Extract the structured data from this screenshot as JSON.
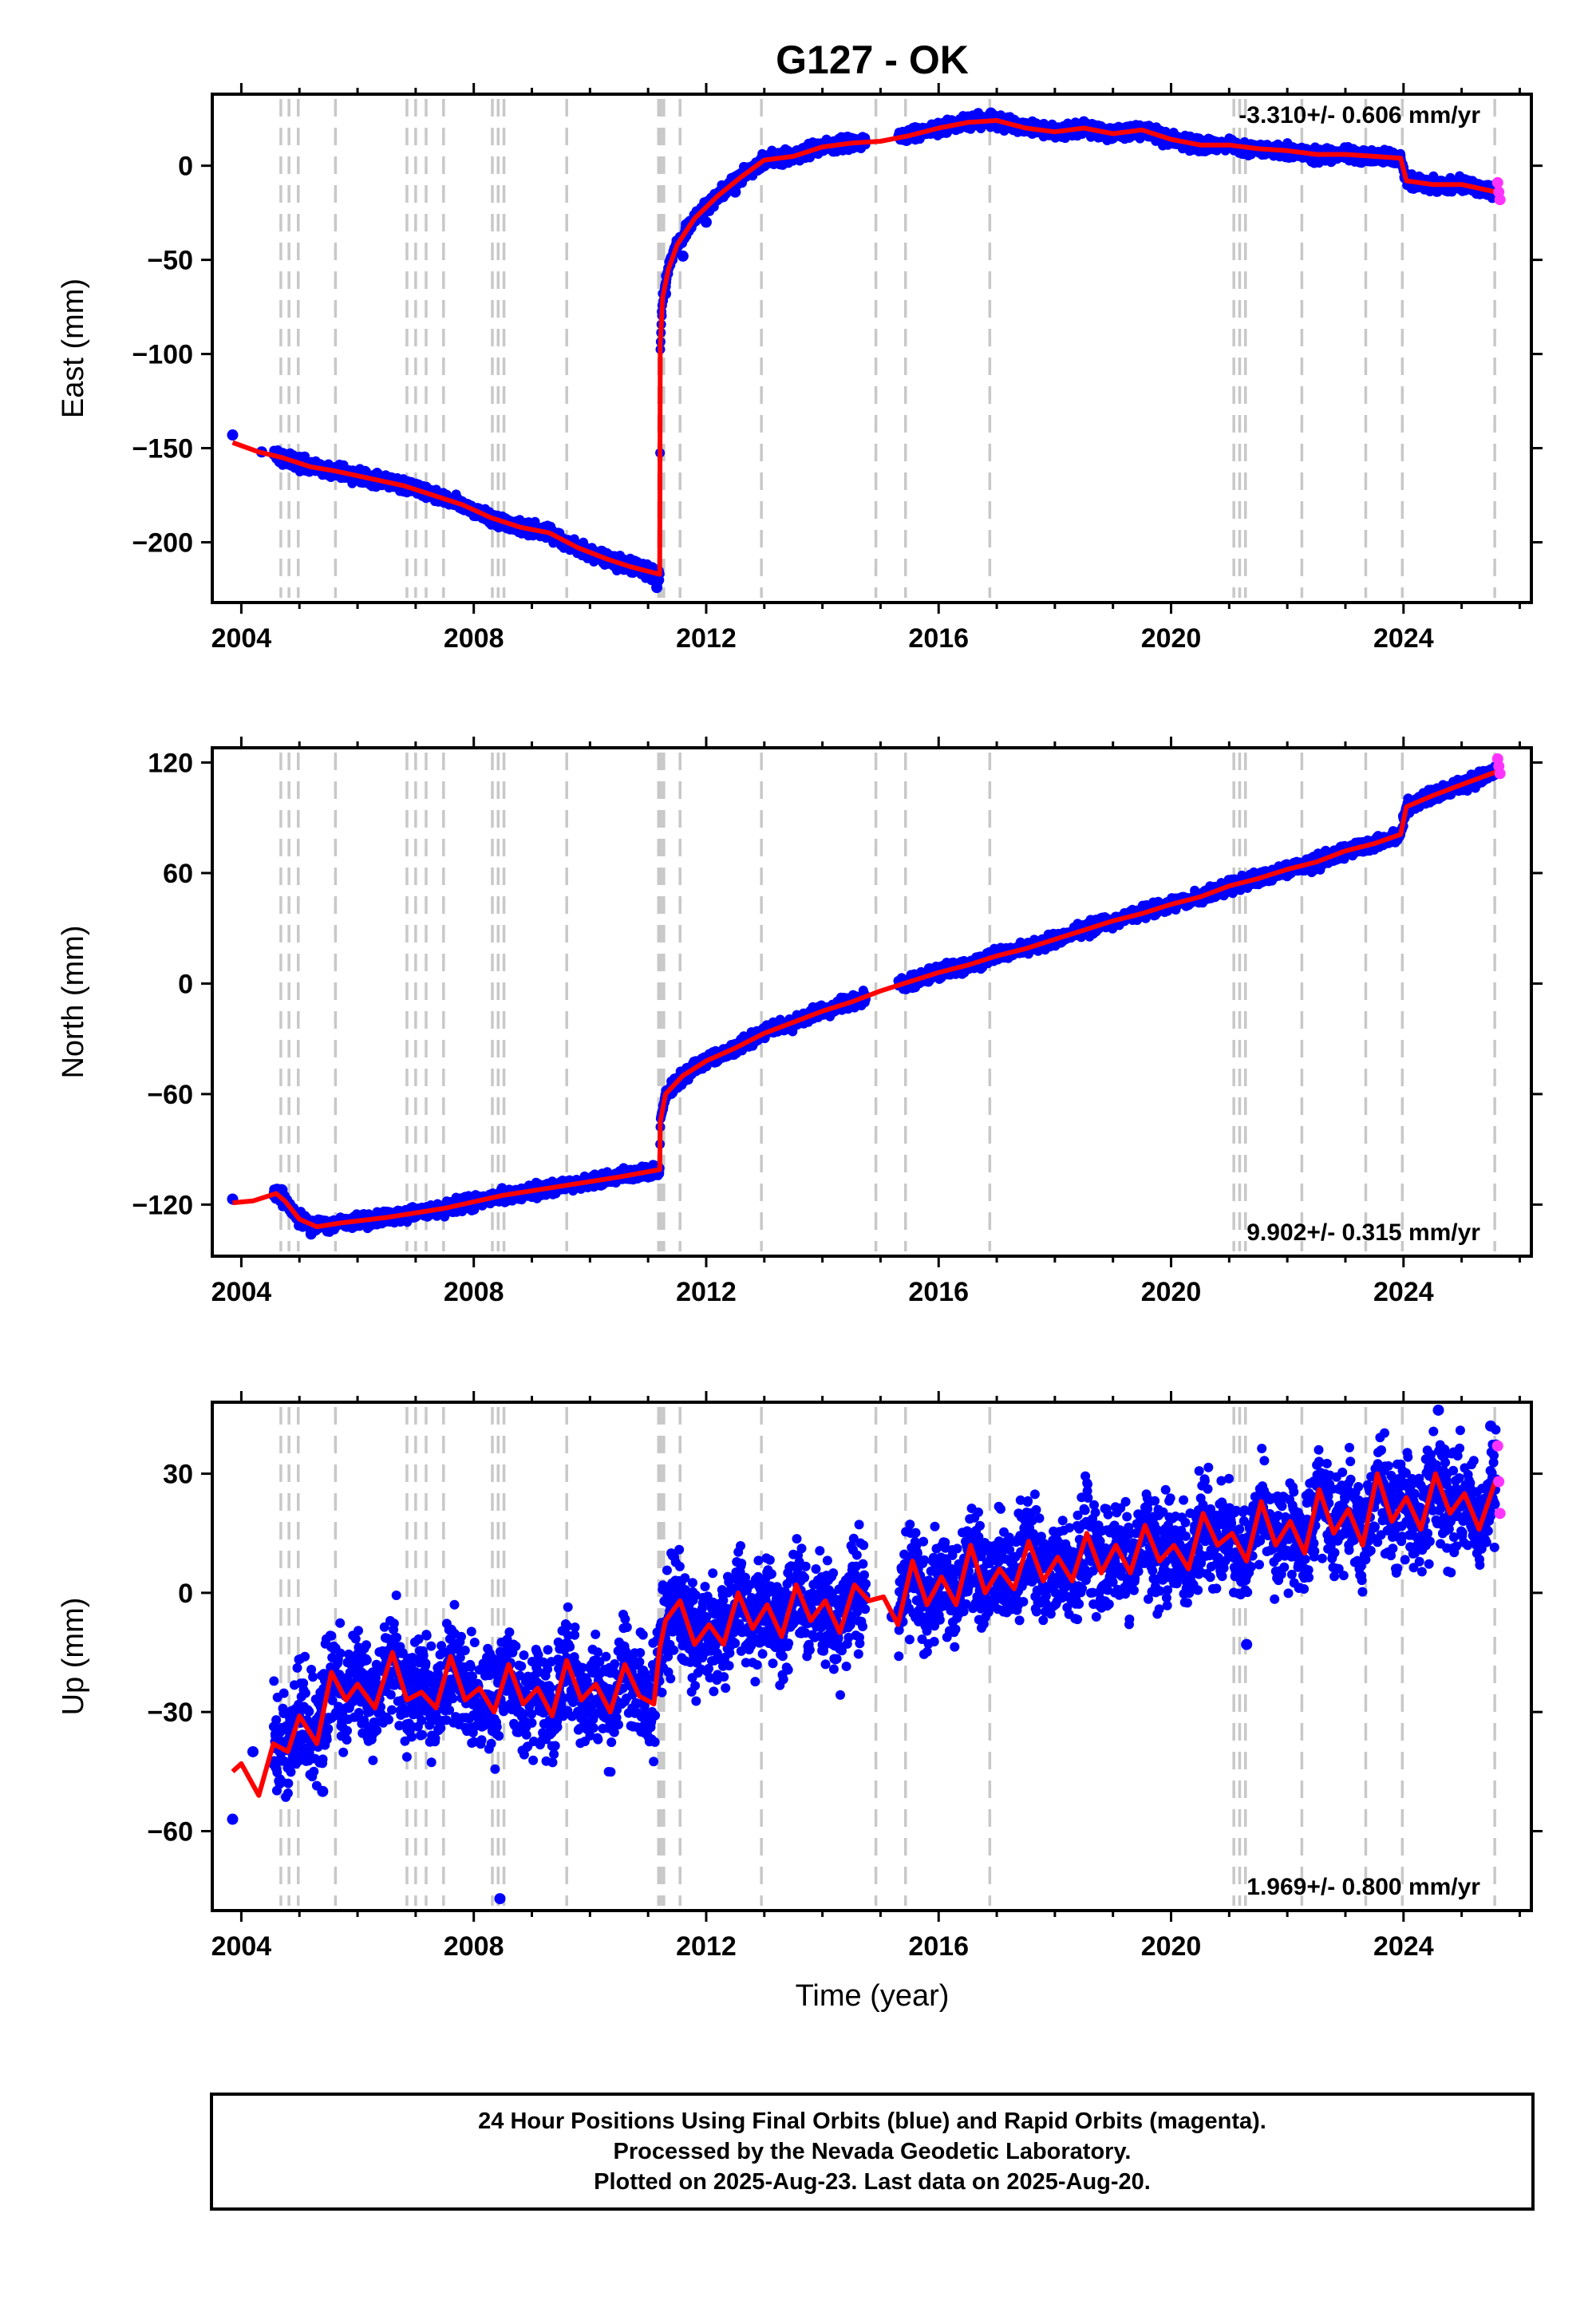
{
  "figure": {
    "title": "G127 - OK",
    "xlabel": "Time (year)",
    "caption": [
      "24 Hour Positions Using Final Orbits (blue) and Rapid Orbits (magenta).",
      "Processed by the Nevada Geodetic Laboratory.",
      "Plotted on 2025-Aug-23. Last data on 2025-Aug-20."
    ],
    "colors": {
      "final": "#0000ff",
      "rapid": "#ff33ff",
      "model": "#ff0000",
      "events": "#c8c8c8"
    },
    "event_lines": [
      2004.68,
      2004.82,
      2004.98,
      2005.62,
      2006.85,
      2007.0,
      2007.18,
      2007.48,
      2008.32,
      2008.42,
      2008.52,
      2009.6,
      2011.18,
      2011.22,
      2011.27,
      2011.55,
      2012.95,
      2014.92,
      2015.43,
      2016.88,
      2021.08,
      2021.18,
      2021.28,
      2022.25,
      2023.35,
      2023.98,
      2025.57
    ]
  },
  "chart_data": [
    {
      "type": "scatter",
      "panel": "east",
      "ylabel": "East (mm)",
      "rate_label": "-3.310+/- 0.606 mm/yr",
      "rate_position": "top-right",
      "xlim": [
        2003.5,
        2026.2
      ],
      "ylim": [
        -232,
        38
      ],
      "xticks": [
        2004,
        2008,
        2012,
        2016,
        2020,
        2024
      ],
      "yticks": [
        0,
        -50,
        -100,
        -150,
        -200
      ],
      "series": [
        {
          "role": "model",
          "x": [
            2003.85,
            2004.3,
            2004.7,
            2005.2,
            2005.6,
            2006.2,
            2006.8,
            2007.3,
            2007.8,
            2008.3,
            2008.8,
            2009.3,
            2009.8,
            2010.3,
            2010.7,
            2011.2,
            2011.21,
            2011.25,
            2011.35,
            2011.5,
            2011.8,
            2012.2,
            2012.6,
            2013.0,
            2013.5,
            2014.0,
            2014.5,
            2015.0,
            2015.5,
            2016.0,
            2016.5,
            2017.0,
            2017.5,
            2018.0,
            2018.5,
            2019.0,
            2019.5,
            2020.0,
            2020.5,
            2021.0,
            2021.5,
            2022.0,
            2022.5,
            2023.0,
            2023.5,
            2023.95,
            2024.05,
            2024.5,
            2025.0,
            2025.6
          ],
          "y": [
            -147,
            -152,
            -155,
            -160,
            -162,
            -166,
            -170,
            -175,
            -180,
            -187,
            -192,
            -195,
            -203,
            -209,
            -213,
            -217,
            -95,
            -70,
            -55,
            -42,
            -28,
            -16,
            -6,
            3,
            5,
            10,
            12,
            13,
            16,
            20,
            23,
            24,
            20,
            18,
            20,
            17,
            19,
            14,
            11,
            11,
            9,
            8,
            6,
            6,
            5,
            4,
            -8,
            -10,
            -10,
            -14
          ]
        },
        {
          "role": "final",
          "x": [
            2003.85,
            2004.35,
            2004.8,
            2005.2,
            2005.7,
            2006.3,
            2006.9,
            2007.4,
            2007.9,
            2008.4,
            2008.9,
            2009.4,
            2009.9,
            2010.4,
            2010.9,
            2011.15,
            2011.3,
            2011.6,
            2012.0,
            2012.5,
            2013.0,
            2013.5,
            2014.0,
            2014.6,
            2015.6,
            2016.2,
            2016.9,
            2017.5,
            2018.2,
            2018.9,
            2019.6,
            2020.3,
            2021.0,
            2021.7,
            2022.4,
            2023.1,
            2023.8,
            2024.3,
            2025.0
          ],
          "y": [
            -143,
            -152,
            -155,
            -161,
            -160,
            -168,
            -171,
            -176,
            -181,
            -188,
            -190,
            -196,
            -204,
            -210,
            -214,
            -224,
            -68,
            -48,
            -30,
            -14,
            0,
            5,
            10,
            13,
            17,
            22,
            28,
            20,
            21,
            16,
            18,
            11,
            12,
            9,
            8,
            5,
            2,
            -8,
            -11
          ]
        },
        {
          "role": "rapid",
          "x": [
            2025.62,
            2025.64,
            2025.66
          ],
          "y": [
            -9,
            -14,
            -18
          ]
        }
      ]
    },
    {
      "type": "scatter",
      "panel": "north",
      "ylabel": "North (mm)",
      "rate_label": "9.902+/- 0.315 mm/yr",
      "rate_position": "bottom-right",
      "xlim": [
        2003.5,
        2026.2
      ],
      "ylim": [
        -148,
        128
      ],
      "xticks": [
        2004,
        2008,
        2012,
        2016,
        2020,
        2024
      ],
      "yticks": [
        120,
        60,
        0,
        -60,
        -120
      ],
      "series": [
        {
          "role": "model",
          "x": [
            2003.85,
            2004.2,
            2004.6,
            2004.75,
            2005.0,
            2005.3,
            2005.7,
            2006.5,
            2007.5,
            2008.5,
            2009.5,
            2010.5,
            2011.2,
            2011.21,
            2011.3,
            2011.6,
            2012.0,
            2012.5,
            2013.0,
            2013.5,
            2014.0,
            2014.5,
            2015.0,
            2015.5,
            2016.0,
            2016.5,
            2017.0,
            2017.5,
            2018.0,
            2018.5,
            2019.0,
            2019.5,
            2020.0,
            2020.5,
            2021.0,
            2021.5,
            2022.0,
            2022.5,
            2023.0,
            2023.5,
            2023.95,
            2024.05,
            2024.5,
            2025.0,
            2025.6
          ],
          "y": [
            -119,
            -118,
            -114,
            -118,
            -128,
            -132,
            -130,
            -127,
            -122,
            -115,
            -110,
            -105,
            -101,
            -75,
            -60,
            -50,
            -42,
            -35,
            -27,
            -21,
            -15,
            -10,
            -4,
            1,
            6,
            10,
            15,
            19,
            24,
            29,
            34,
            38,
            43,
            47,
            53,
            57,
            62,
            66,
            72,
            76,
            81,
            96,
            102,
            108,
            115
          ]
        },
        {
          "role": "final",
          "x": [
            2003.85,
            2004.7,
            2005.2,
            2005.8,
            2006.5,
            2007.3,
            2008.0,
            2008.8,
            2009.6,
            2010.4,
            2011.1,
            2011.3,
            2011.8,
            2012.4,
            2013.1,
            2013.8,
            2014.5,
            2015.5,
            2016.3,
            2017.0,
            2017.8,
            2018.6,
            2019.4,
            2020.2,
            2021.0,
            2021.8,
            2022.6,
            2023.4,
            2024.1,
            2024.8,
            2025.5
          ],
          "y": [
            -117,
            -112,
            -136,
            -128,
            -126,
            -123,
            -118,
            -114,
            -110,
            -106,
            -102,
            -62,
            -45,
            -38,
            -26,
            -18,
            -10,
            2,
            9,
            14,
            21,
            28,
            36,
            44,
            52,
            59,
            66,
            75,
            97,
            106,
            116
          ]
        },
        {
          "role": "rapid",
          "x": [
            2025.62,
            2025.64,
            2025.66
          ],
          "y": [
            122,
            118,
            114
          ]
        }
      ]
    },
    {
      "type": "scatter",
      "panel": "up",
      "ylabel": "Up (mm)",
      "rate_label": "1.969+/- 0.800 mm/yr",
      "rate_position": "bottom-right",
      "xlim": [
        2003.5,
        2026.2
      ],
      "ylim": [
        -80,
        48
      ],
      "xticks": [
        2004,
        2008,
        2012,
        2016,
        2020,
        2024
      ],
      "yticks": [
        30,
        0,
        -30,
        -60
      ],
      "series": [
        {
          "role": "model",
          "x": [
            2003.85,
            2004.0,
            2004.3,
            2004.55,
            2004.8,
            2005.0,
            2005.3,
            2005.55,
            2005.8,
            2006.0,
            2006.3,
            2006.6,
            2006.85,
            2007.1,
            2007.35,
            2007.6,
            2007.85,
            2008.1,
            2008.35,
            2008.6,
            2008.85,
            2009.1,
            2009.35,
            2009.6,
            2009.85,
            2010.1,
            2010.35,
            2010.6,
            2010.85,
            2011.1,
            2011.2,
            2011.3,
            2011.55,
            2011.8,
            2012.05,
            2012.3,
            2012.55,
            2012.8,
            2013.05,
            2013.3,
            2013.55,
            2013.8,
            2014.05,
            2014.3,
            2014.55,
            2014.8,
            2015.05,
            2015.3,
            2015.55,
            2015.8,
            2016.05,
            2016.3,
            2016.55,
            2016.8,
            2017.05,
            2017.3,
            2017.55,
            2017.8,
            2018.05,
            2018.3,
            2018.55,
            2018.8,
            2019.05,
            2019.3,
            2019.55,
            2019.8,
            2020.05,
            2020.3,
            2020.55,
            2020.8,
            2021.05,
            2021.3,
            2021.55,
            2021.8,
            2022.05,
            2022.3,
            2022.55,
            2022.8,
            2023.05,
            2023.3,
            2023.55,
            2023.8,
            2024.05,
            2024.3,
            2024.55,
            2024.8,
            2025.05,
            2025.3,
            2025.6
          ],
          "y": [
            -45,
            -43,
            -51,
            -38,
            -40,
            -31,
            -38,
            -20,
            -27,
            -23,
            -29,
            -15,
            -27,
            -25,
            -29,
            -16,
            -27,
            -24,
            -30,
            -18,
            -28,
            -24,
            -31,
            -17,
            -27,
            -23,
            -30,
            -18,
            -26,
            -28,
            -14,
            -7,
            -2,
            -13,
            -8,
            -13,
            0,
            -9,
            -3,
            -11,
            2,
            -7,
            -2,
            -10,
            2,
            -2,
            -1,
            -8,
            8,
            -3,
            4,
            -3,
            12,
            0,
            6,
            1,
            13,
            3,
            9,
            3,
            15,
            5,
            12,
            5,
            17,
            8,
            12,
            6,
            20,
            12,
            15,
            8,
            23,
            12,
            18,
            10,
            26,
            15,
            21,
            12,
            30,
            18,
            24,
            16,
            30,
            20,
            25,
            16,
            29
          ]
        },
        {
          "role": "final",
          "x": [
            2003.85,
            2004.2,
            2004.6,
            2005.0,
            2005.4,
            2005.7,
            2006.1,
            2006.6,
            2007.1,
            2007.6,
            2008.1,
            2008.45,
            2008.7,
            2009.2,
            2009.7,
            2010.2,
            2010.7,
            2011.1,
            2011.4,
            2011.7,
            2012.1,
            2012.6,
            2013.1,
            2013.6,
            2014.1,
            2014.6,
            2015.2,
            2015.6,
            2016.1,
            2016.6,
            2017.1,
            2017.6,
            2018.1,
            2018.6,
            2019.1,
            2019.6,
            2020.1,
            2020.6,
            2021.0,
            2021.3,
            2021.6,
            2022.1,
            2022.6,
            2023.1,
            2023.6,
            2024.1,
            2024.6,
            2025.1,
            2025.5
          ],
          "y": [
            -57,
            -40,
            -36,
            -42,
            -50,
            -22,
            -25,
            -20,
            -27,
            -22,
            -28,
            -77,
            -22,
            -30,
            -19,
            -28,
            -21,
            -25,
            -8,
            -5,
            -12,
            0,
            -9,
            3,
            -8,
            2,
            -6,
            5,
            -1,
            8,
            2,
            12,
            4,
            10,
            6,
            14,
            8,
            18,
            10,
            -13,
            20,
            14,
            22,
            16,
            24,
            20,
            46,
            24,
            42
          ]
        },
        {
          "role": "rapid",
          "x": [
            2025.62,
            2025.64,
            2025.66
          ],
          "y": [
            37,
            28,
            20
          ]
        }
      ]
    }
  ]
}
